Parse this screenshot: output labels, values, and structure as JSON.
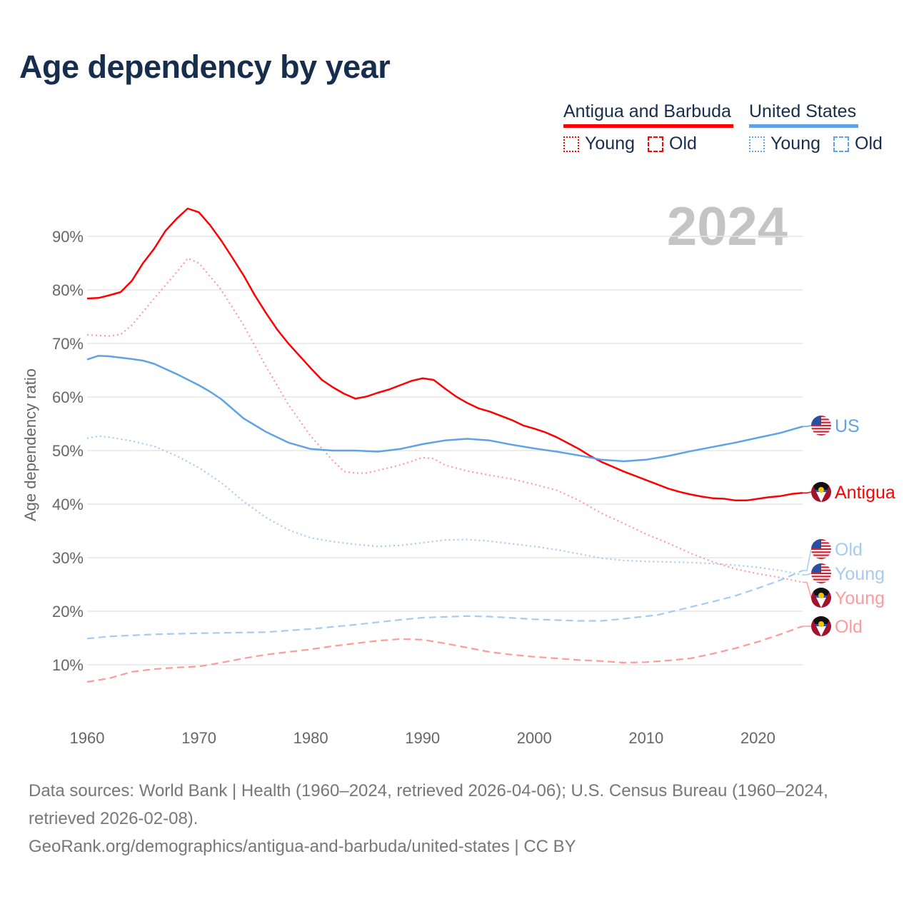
{
  "title": "Age dependency by year",
  "legend": {
    "groups": [
      {
        "name": "Antigua and Barbuda",
        "color": "#ff0000",
        "young": "Young",
        "old": "Old"
      },
      {
        "name": "United States",
        "color": "#5ea3e8",
        "young": "Young",
        "old": "Old"
      }
    ]
  },
  "watermark_year": "2024",
  "footer": {
    "sources": "Data sources: World Bank | Health (1960–2024, retrieved 2026-04-06); U.S. Census Bureau (1960–2024, retrieved 2026-02-08).",
    "attribution": "GeoRank.org/demographics/antigua-and-barbuda/united-states | CC BY"
  },
  "chart_data": {
    "type": "line",
    "title": "Age dependency by year",
    "xlabel": "",
    "ylabel": "Age dependency ratio",
    "xlim": [
      1960,
      2024
    ],
    "ylim": [
      0,
      100
    ],
    "x_ticks": [
      1960,
      1970,
      1980,
      1990,
      2000,
      2010,
      2020
    ],
    "y_ticks": [
      10,
      20,
      30,
      40,
      50,
      60,
      70,
      80,
      90
    ],
    "y_tick_labels": [
      "10%",
      "20%",
      "30%",
      "40%",
      "50%",
      "60%",
      "70%",
      "80%",
      "90%"
    ],
    "grid": true,
    "legend_position": "top-right",
    "series": [
      {
        "name": "Antigua",
        "end_label": "Antigua",
        "country": "ag",
        "color": "#ff0000",
        "style": "solid",
        "x": [
          1960,
          1961,
          1962,
          1963,
          1964,
          1965,
          1966,
          1967,
          1968,
          1969,
          1970,
          1971,
          1972,
          1973,
          1974,
          1975,
          1976,
          1977,
          1978,
          1979,
          1980,
          1981,
          1982,
          1983,
          1984,
          1985,
          1986,
          1987,
          1988,
          1989,
          1990,
          1991,
          1992,
          1993,
          1994,
          1995,
          1996,
          1997,
          1998,
          1999,
          2000,
          2001,
          2002,
          2003,
          2004,
          2005,
          2006,
          2007,
          2008,
          2009,
          2010,
          2011,
          2012,
          2013,
          2014,
          2015,
          2016,
          2017,
          2018,
          2019,
          2020,
          2021,
          2022,
          2023,
          2024
        ],
        "y": [
          78.4,
          78.5,
          79.0,
          79.6,
          81.7,
          85.0,
          87.7,
          91.0,
          93.3,
          95.2,
          94.5,
          92.1,
          89.2,
          86.0,
          82.7,
          79.0,
          75.7,
          72.6,
          70.0,
          67.7,
          65.4,
          63.2,
          61.8,
          60.6,
          59.7,
          60.1,
          60.8,
          61.4,
          62.2,
          63.0,
          63.5,
          63.2,
          61.6,
          60.1,
          58.9,
          57.9,
          57.3,
          56.5,
          55.7,
          54.7,
          54.1,
          53.4,
          52.5,
          51.4,
          50.3,
          49.0,
          47.9,
          47.0,
          46.1,
          45.3,
          44.5,
          43.7,
          42.9,
          42.3,
          41.8,
          41.4,
          41.1,
          41.0,
          40.7,
          40.7,
          41.0,
          41.3,
          41.5,
          41.9,
          42.1
        ]
      },
      {
        "name": "Antigua Young",
        "end_label": "Young",
        "country": "ag",
        "color": "#ff9a9a",
        "style": "dotted",
        "x": [
          1960,
          1962,
          1963,
          1964,
          1966,
          1968,
          1969,
          1970,
          1972,
          1974,
          1976,
          1978,
          1980,
          1982,
          1983,
          1984,
          1985,
          1986,
          1988,
          1990,
          1991,
          1992,
          1994,
          1996,
          1998,
          2000,
          2002,
          2004,
          2006,
          2008,
          2010,
          2012,
          2014,
          2016,
          2018,
          2020,
          2022,
          2024
        ],
        "y": [
          71.6,
          71.4,
          71.7,
          73.4,
          78.4,
          83.3,
          85.9,
          85.0,
          80.0,
          73.4,
          65.7,
          58.6,
          52.7,
          48.1,
          46.1,
          45.8,
          45.8,
          46.3,
          47.3,
          48.7,
          48.5,
          47.3,
          46.2,
          45.4,
          44.7,
          43.7,
          42.6,
          40.7,
          38.3,
          36.4,
          34.4,
          32.7,
          30.8,
          29.2,
          27.9,
          27.0,
          26.3,
          25.4
        ]
      },
      {
        "name": "Antigua Old",
        "end_label": "Old",
        "country": "ag",
        "color": "#ff9a9a",
        "style": "dashed",
        "x": [
          1960,
          1962,
          1964,
          1966,
          1968,
          1970,
          1972,
          1974,
          1976,
          1978,
          1980,
          1982,
          1984,
          1986,
          1988,
          1990,
          1992,
          1994,
          1996,
          1998,
          2000,
          2002,
          2004,
          2006,
          2008,
          2010,
          2012,
          2014,
          2016,
          2018,
          2020,
          2022,
          2024
        ],
        "y": [
          6.8,
          7.5,
          8.7,
          9.2,
          9.5,
          9.7,
          10.4,
          11.2,
          11.9,
          12.4,
          12.9,
          13.5,
          14.0,
          14.5,
          14.8,
          14.7,
          14.0,
          13.2,
          12.4,
          11.9,
          11.5,
          11.2,
          10.9,
          10.7,
          10.4,
          10.5,
          10.8,
          11.2,
          12.1,
          13.1,
          14.3,
          15.7,
          17.2
        ]
      },
      {
        "name": "US",
        "end_label": "US",
        "country": "us",
        "color": "#5ea3e8",
        "style": "solid",
        "x": [
          1960,
          1961,
          1962,
          1964,
          1965,
          1966,
          1968,
          1970,
          1971,
          1972,
          1974,
          1976,
          1978,
          1980,
          1982,
          1984,
          1986,
          1988,
          1990,
          1992,
          1994,
          1996,
          1998,
          2000,
          2002,
          2004,
          2006,
          2008,
          2010,
          2012,
          2014,
          2016,
          2018,
          2020,
          2022,
          2024
        ],
        "y": [
          67.0,
          67.7,
          67.6,
          67.1,
          66.8,
          66.2,
          64.3,
          62.2,
          61.0,
          59.6,
          56.0,
          53.5,
          51.5,
          50.3,
          50.0,
          50.0,
          49.8,
          50.3,
          51.2,
          51.9,
          52.2,
          51.9,
          51.1,
          50.4,
          49.8,
          49.1,
          48.3,
          48.0,
          48.3,
          49.0,
          49.9,
          50.7,
          51.5,
          52.4,
          53.3,
          54.5
        ]
      },
      {
        "name": "US Old",
        "end_label": "Old",
        "country": "us",
        "color": "#a6cbf2",
        "style": "dashed",
        "x": [
          1960,
          1962,
          1966,
          1970,
          1976,
          1980,
          1984,
          1988,
          1990,
          1994,
          1996,
          2000,
          2004,
          2006,
          2008,
          2011,
          2014,
          2016,
          2018,
          2020,
          2022,
          2024
        ],
        "y": [
          14.9,
          15.3,
          15.7,
          15.9,
          16.1,
          16.7,
          17.5,
          18.4,
          18.8,
          19.1,
          19.0,
          18.5,
          18.2,
          18.2,
          18.6,
          19.3,
          20.8,
          21.8,
          22.9,
          24.3,
          25.8,
          27.6
        ]
      },
      {
        "name": "US Young",
        "end_label": "Young",
        "country": "us",
        "color": "#a6cbf2",
        "style": "dotted",
        "x": [
          1960,
          1961,
          1962,
          1964,
          1966,
          1968,
          1970,
          1972,
          1974,
          1976,
          1978,
          1980,
          1982,
          1984,
          1986,
          1988,
          1990,
          1992,
          1994,
          1996,
          1998,
          2000,
          2002,
          2004,
          2006,
          2008,
          2010,
          2012,
          2014,
          2016,
          2018,
          2020,
          2022,
          2024
        ],
        "y": [
          52.3,
          52.7,
          52.5,
          51.8,
          50.8,
          49.0,
          46.8,
          44.0,
          40.5,
          37.5,
          35.2,
          33.7,
          33.0,
          32.5,
          32.1,
          32.3,
          32.8,
          33.3,
          33.4,
          33.1,
          32.6,
          32.1,
          31.5,
          30.7,
          29.9,
          29.5,
          29.3,
          29.2,
          29.1,
          28.9,
          28.6,
          28.2,
          27.6,
          26.8
        ]
      }
    ]
  }
}
